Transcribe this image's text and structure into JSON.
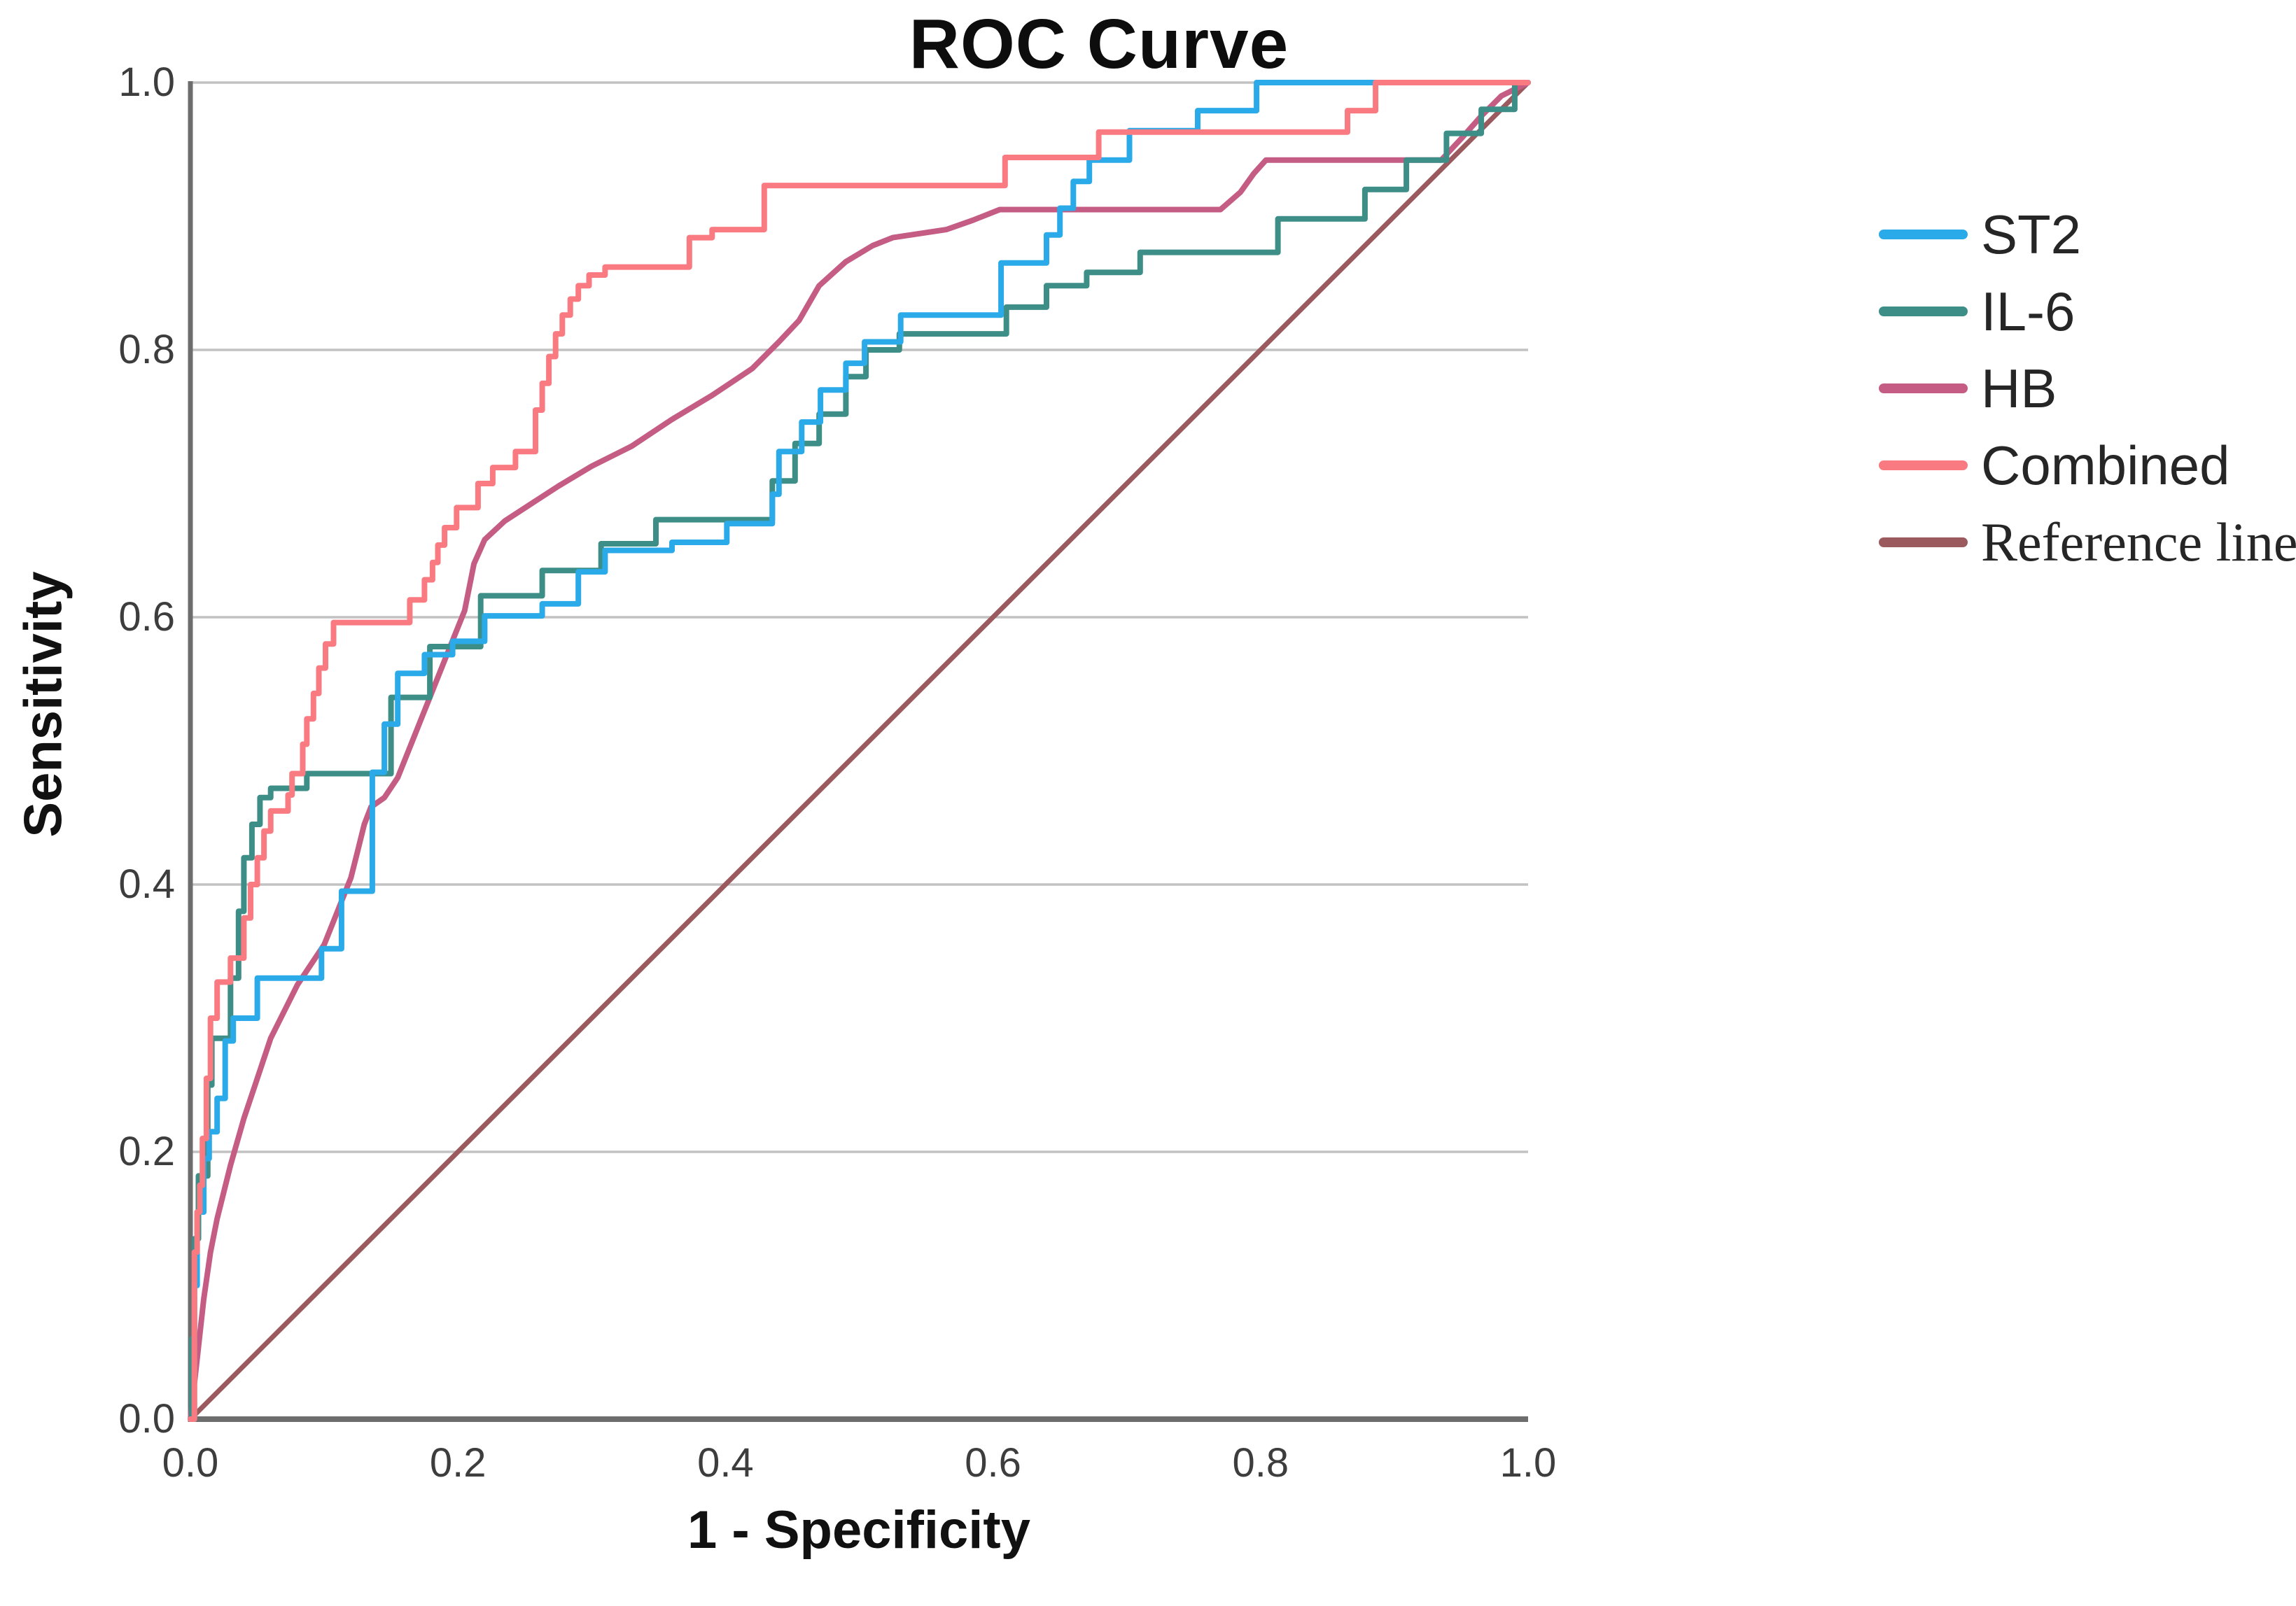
{
  "title": "ROC Curve",
  "axes": {
    "x_label": "1 - Specificity",
    "y_label": "Sensitivity",
    "x_tick_labels": [
      "0.0",
      "0.2",
      "0.4",
      "0.6",
      "0.8",
      "1.0"
    ],
    "y_tick_labels": [
      "0.0",
      "0.2",
      "0.4",
      "0.6",
      "0.8",
      "1.0"
    ]
  },
  "legend": {
    "position": "right",
    "items": [
      "ST2",
      "IL-6",
      "HB",
      "Combined",
      "Reference line"
    ]
  },
  "chart_data": {
    "type": "line",
    "subtype": "ROC step curves",
    "title": "ROC Curve",
    "xlabel": "1 - Specificity",
    "ylabel": "Sensitivity",
    "xlim": [
      0.0,
      1.0
    ],
    "ylim": [
      0.0,
      1.0
    ],
    "x_ticks": [
      0.0,
      0.2,
      0.4,
      0.6,
      0.8,
      1.0
    ],
    "y_ticks": [
      0.0,
      0.2,
      0.4,
      0.6,
      0.8,
      1.0
    ],
    "grid": "horizontal gridlines at 0.2 steps",
    "gridline_color": "#c2c2c2",
    "axis_color": "#6d6d6d",
    "legend_position": "right",
    "series": [
      {
        "name": "ST2",
        "color": "#2BAAE9",
        "line_style": "step",
        "serif_label": false,
        "points": [
          [
            0,
            0
          ],
          [
            0.003,
            0
          ],
          [
            0.003,
            0.1
          ],
          [
            0.005,
            0.1
          ],
          [
            0.005,
            0.155
          ],
          [
            0.01,
            0.155
          ],
          [
            0.01,
            0.195
          ],
          [
            0.014,
            0.195
          ],
          [
            0.014,
            0.215
          ],
          [
            0.02,
            0.215
          ],
          [
            0.02,
            0.24
          ],
          [
            0.026,
            0.24
          ],
          [
            0.026,
            0.283
          ],
          [
            0.032,
            0.283
          ],
          [
            0.032,
            0.3
          ],
          [
            0.05,
            0.3
          ],
          [
            0.05,
            0.33
          ],
          [
            0.098,
            0.33
          ],
          [
            0.098,
            0.352
          ],
          [
            0.113,
            0.352
          ],
          [
            0.113,
            0.395
          ],
          [
            0.136,
            0.395
          ],
          [
            0.136,
            0.484
          ],
          [
            0.145,
            0.484
          ],
          [
            0.145,
            0.52
          ],
          [
            0.155,
            0.52
          ],
          [
            0.155,
            0.558
          ],
          [
            0.175,
            0.558
          ],
          [
            0.175,
            0.572
          ],
          [
            0.196,
            0.572
          ],
          [
            0.196,
            0.582
          ],
          [
            0.22,
            0.582
          ],
          [
            0.22,
            0.601
          ],
          [
            0.263,
            0.601
          ],
          [
            0.263,
            0.61
          ],
          [
            0.29,
            0.61
          ],
          [
            0.29,
            0.634
          ],
          [
            0.31,
            0.634
          ],
          [
            0.31,
            0.65
          ],
          [
            0.36,
            0.65
          ],
          [
            0.36,
            0.656
          ],
          [
            0.401,
            0.656
          ],
          [
            0.401,
            0.67
          ],
          [
            0.435,
            0.67
          ],
          [
            0.435,
            0.692
          ],
          [
            0.44,
            0.692
          ],
          [
            0.44,
            0.724
          ],
          [
            0.457,
            0.724
          ],
          [
            0.457,
            0.746
          ],
          [
            0.471,
            0.746
          ],
          [
            0.471,
            0.77
          ],
          [
            0.49,
            0.77
          ],
          [
            0.49,
            0.79
          ],
          [
            0.504,
            0.79
          ],
          [
            0.504,
            0.806
          ],
          [
            0.531,
            0.806
          ],
          [
            0.531,
            0.826
          ],
          [
            0.606,
            0.826
          ],
          [
            0.606,
            0.865
          ],
          [
            0.64,
            0.865
          ],
          [
            0.64,
            0.886
          ],
          [
            0.65,
            0.886
          ],
          [
            0.65,
            0.906
          ],
          [
            0.66,
            0.906
          ],
          [
            0.66,
            0.926
          ],
          [
            0.672,
            0.926
          ],
          [
            0.672,
            0.942
          ],
          [
            0.702,
            0.942
          ],
          [
            0.702,
            0.964
          ],
          [
            0.753,
            0.964
          ],
          [
            0.753,
            0.979
          ],
          [
            0.797,
            0.979
          ],
          [
            0.797,
            1
          ],
          [
            1,
            1
          ]
        ]
      },
      {
        "name": "IL-6",
        "color": "#3E8E88",
        "line_style": "step",
        "serif_label": false,
        "points": [
          [
            0,
            0
          ],
          [
            0.001,
            0
          ],
          [
            0.001,
            0.06
          ],
          [
            0.003,
            0.06
          ],
          [
            0.003,
            0.135
          ],
          [
            0.006,
            0.135
          ],
          [
            0.006,
            0.182
          ],
          [
            0.013,
            0.182
          ],
          [
            0.013,
            0.25
          ],
          [
            0.016,
            0.25
          ],
          [
            0.016,
            0.285
          ],
          [
            0.03,
            0.285
          ],
          [
            0.03,
            0.33
          ],
          [
            0.036,
            0.33
          ],
          [
            0.036,
            0.38
          ],
          [
            0.04,
            0.38
          ],
          [
            0.04,
            0.42
          ],
          [
            0.046,
            0.42
          ],
          [
            0.046,
            0.445
          ],
          [
            0.052,
            0.445
          ],
          [
            0.052,
            0.465
          ],
          [
            0.06,
            0.465
          ],
          [
            0.06,
            0.472
          ],
          [
            0.087,
            0.472
          ],
          [
            0.087,
            0.483
          ],
          [
            0.15,
            0.483
          ],
          [
            0.15,
            0.54
          ],
          [
            0.179,
            0.54
          ],
          [
            0.179,
            0.578
          ],
          [
            0.217,
            0.578
          ],
          [
            0.217,
            0.616
          ],
          [
            0.263,
            0.616
          ],
          [
            0.263,
            0.635
          ],
          [
            0.307,
            0.635
          ],
          [
            0.307,
            0.655
          ],
          [
            0.348,
            0.655
          ],
          [
            0.348,
            0.673
          ],
          [
            0.435,
            0.673
          ],
          [
            0.435,
            0.702
          ],
          [
            0.452,
            0.702
          ],
          [
            0.452,
            0.73
          ],
          [
            0.47,
            0.73
          ],
          [
            0.47,
            0.752
          ],
          [
            0.49,
            0.752
          ],
          [
            0.49,
            0.78
          ],
          [
            0.505,
            0.78
          ],
          [
            0.505,
            0.8
          ],
          [
            0.53,
            0.8
          ],
          [
            0.53,
            0.812
          ],
          [
            0.61,
            0.812
          ],
          [
            0.61,
            0.832
          ],
          [
            0.64,
            0.832
          ],
          [
            0.64,
            0.848
          ],
          [
            0.67,
            0.848
          ],
          [
            0.67,
            0.858
          ],
          [
            0.71,
            0.858
          ],
          [
            0.71,
            0.873
          ],
          [
            0.813,
            0.873
          ],
          [
            0.813,
            0.898
          ],
          [
            0.878,
            0.898
          ],
          [
            0.878,
            0.92
          ],
          [
            0.909,
            0.92
          ],
          [
            0.909,
            0.942
          ],
          [
            0.939,
            0.942
          ],
          [
            0.939,
            0.962
          ],
          [
            0.965,
            0.962
          ],
          [
            0.965,
            0.98
          ],
          [
            0.99,
            0.98
          ],
          [
            0.99,
            1
          ],
          [
            1,
            1
          ]
        ]
      },
      {
        "name": "HB",
        "color": "#C45C83",
        "line_style": "curve",
        "serif_label": false,
        "points": [
          [
            0,
            0
          ],
          [
            0.005,
            0.045
          ],
          [
            0.01,
            0.09
          ],
          [
            0.015,
            0.125
          ],
          [
            0.02,
            0.15
          ],
          [
            0.03,
            0.19
          ],
          [
            0.04,
            0.225
          ],
          [
            0.05,
            0.255
          ],
          [
            0.06,
            0.285
          ],
          [
            0.07,
            0.305
          ],
          [
            0.08,
            0.325
          ],
          [
            0.09,
            0.34
          ],
          [
            0.1,
            0.355
          ],
          [
            0.11,
            0.38
          ],
          [
            0.12,
            0.405
          ],
          [
            0.125,
            0.425
          ],
          [
            0.13,
            0.445
          ],
          [
            0.135,
            0.458
          ],
          [
            0.145,
            0.465
          ],
          [
            0.155,
            0.48
          ],
          [
            0.165,
            0.505
          ],
          [
            0.175,
            0.53
          ],
          [
            0.185,
            0.555
          ],
          [
            0.195,
            0.58
          ],
          [
            0.205,
            0.605
          ],
          [
            0.212,
            0.64
          ],
          [
            0.22,
            0.658
          ],
          [
            0.235,
            0.672
          ],
          [
            0.255,
            0.685
          ],
          [
            0.275,
            0.698
          ],
          [
            0.3,
            0.713
          ],
          [
            0.33,
            0.728
          ],
          [
            0.36,
            0.748
          ],
          [
            0.39,
            0.766
          ],
          [
            0.42,
            0.786
          ],
          [
            0.44,
            0.806
          ],
          [
            0.455,
            0.822
          ],
          [
            0.47,
            0.848
          ],
          [
            0.49,
            0.866
          ],
          [
            0.51,
            0.878
          ],
          [
            0.525,
            0.884
          ],
          [
            0.545,
            0.887
          ],
          [
            0.565,
            0.89
          ],
          [
            0.585,
            0.897
          ],
          [
            0.605,
            0.905
          ],
          [
            0.77,
            0.905
          ],
          [
            0.785,
            0.918
          ],
          [
            0.795,
            0.932
          ],
          [
            0.804,
            0.942
          ],
          [
            0.935,
            0.942
          ],
          [
            0.95,
            0.958
          ],
          [
            0.965,
            0.975
          ],
          [
            0.98,
            0.99
          ],
          [
            1,
            1
          ]
        ]
      },
      {
        "name": "Combined",
        "color": "#F97B81",
        "line_style": "step",
        "serif_label": false,
        "points": [
          [
            0,
            0
          ],
          [
            0.003,
            0
          ],
          [
            0.003,
            0.125
          ],
          [
            0.005,
            0.125
          ],
          [
            0.005,
            0.155
          ],
          [
            0.007,
            0.155
          ],
          [
            0.007,
            0.175
          ],
          [
            0.009,
            0.175
          ],
          [
            0.009,
            0.21
          ],
          [
            0.012,
            0.21
          ],
          [
            0.012,
            0.255
          ],
          [
            0.015,
            0.255
          ],
          [
            0.015,
            0.3
          ],
          [
            0.02,
            0.3
          ],
          [
            0.02,
            0.327
          ],
          [
            0.03,
            0.327
          ],
          [
            0.03,
            0.345
          ],
          [
            0.04,
            0.345
          ],
          [
            0.04,
            0.375
          ],
          [
            0.045,
            0.375
          ],
          [
            0.045,
            0.4
          ],
          [
            0.05,
            0.4
          ],
          [
            0.05,
            0.42
          ],
          [
            0.055,
            0.42
          ],
          [
            0.055,
            0.44
          ],
          [
            0.06,
            0.44
          ],
          [
            0.06,
            0.455
          ],
          [
            0.073,
            0.455
          ],
          [
            0.073,
            0.467
          ],
          [
            0.076,
            0.467
          ],
          [
            0.076,
            0.483
          ],
          [
            0.084,
            0.483
          ],
          [
            0.084,
            0.505
          ],
          [
            0.087,
            0.505
          ],
          [
            0.087,
            0.524
          ],
          [
            0.092,
            0.524
          ],
          [
            0.092,
            0.543
          ],
          [
            0.096,
            0.543
          ],
          [
            0.096,
            0.562
          ],
          [
            0.101,
            0.562
          ],
          [
            0.101,
            0.58
          ],
          [
            0.107,
            0.58
          ],
          [
            0.107,
            0.596
          ],
          [
            0.164,
            0.596
          ],
          [
            0.164,
            0.613
          ],
          [
            0.175,
            0.613
          ],
          [
            0.175,
            0.628
          ],
          [
            0.181,
            0.628
          ],
          [
            0.181,
            0.641
          ],
          [
            0.185,
            0.641
          ],
          [
            0.185,
            0.654
          ],
          [
            0.19,
            0.654
          ],
          [
            0.19,
            0.667
          ],
          [
            0.199,
            0.667
          ],
          [
            0.199,
            0.682
          ],
          [
            0.215,
            0.682
          ],
          [
            0.215,
            0.7
          ],
          [
            0.226,
            0.7
          ],
          [
            0.226,
            0.712
          ],
          [
            0.243,
            0.712
          ],
          [
            0.243,
            0.724
          ],
          [
            0.258,
            0.724
          ],
          [
            0.258,
            0.755
          ],
          [
            0.263,
            0.755
          ],
          [
            0.263,
            0.775
          ],
          [
            0.268,
            0.775
          ],
          [
            0.268,
            0.795
          ],
          [
            0.273,
            0.795
          ],
          [
            0.273,
            0.812
          ],
          [
            0.278,
            0.812
          ],
          [
            0.278,
            0.826
          ],
          [
            0.284,
            0.826
          ],
          [
            0.284,
            0.838
          ],
          [
            0.29,
            0.838
          ],
          [
            0.29,
            0.848
          ],
          [
            0.298,
            0.848
          ],
          [
            0.298,
            0.856
          ],
          [
            0.31,
            0.856
          ],
          [
            0.31,
            0.862
          ],
          [
            0.373,
            0.862
          ],
          [
            0.373,
            0.884
          ],
          [
            0.39,
            0.884
          ],
          [
            0.39,
            0.89
          ],
          [
            0.429,
            0.89
          ],
          [
            0.429,
            0.923
          ],
          [
            0.609,
            0.923
          ],
          [
            0.609,
            0.944
          ],
          [
            0.679,
            0.944
          ],
          [
            0.679,
            0.963
          ],
          [
            0.865,
            0.963
          ],
          [
            0.865,
            0.979
          ],
          [
            0.886,
            0.979
          ],
          [
            0.886,
            1
          ],
          [
            1,
            1
          ]
        ]
      },
      {
        "name": "Reference line",
        "color": "#9B5B5E",
        "line_style": "straight",
        "serif_label": true,
        "points": [
          [
            0,
            0
          ],
          [
            1,
            1
          ]
        ]
      }
    ]
  }
}
